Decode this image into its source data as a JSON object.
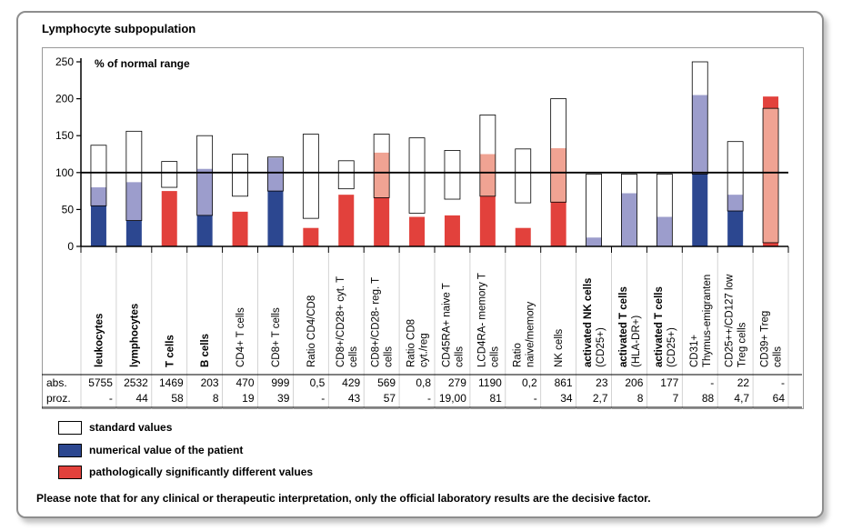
{
  "panel_title": "Lymphocyte subpopulation",
  "colors": {
    "standard": "#ffffff",
    "patient": "#2c4790",
    "patient_in_range": "#9c9dcc",
    "pathological": "#e2413c",
    "pathological_in_range": "#f0a393"
  },
  "chart_data": {
    "type": "bar",
    "title": "",
    "ylabel": "% of normal range",
    "ylim": [
      0,
      250
    ],
    "yticks": [
      0,
      50,
      100,
      150,
      200,
      250
    ],
    "reference_line": 100,
    "categories": [
      {
        "label": "leukocytes",
        "bold": true
      },
      {
        "label": "lymphocytes",
        "bold": true
      },
      {
        "label": "T cells",
        "bold": true
      },
      {
        "label": "B cells",
        "bold": true
      },
      {
        "label": "CD4+ T cells",
        "bold": false
      },
      {
        "label": "CD8+ T cells",
        "bold": false
      },
      {
        "label": "Ratio CD4/CD8",
        "bold": false
      },
      {
        "label": "CD8+/CD28+ cyt. T cells",
        "bold": false
      },
      {
        "label": "CD8+/CD28- reg. T cells",
        "bold": false
      },
      {
        "label": "Ratio CD8 cyt./reg",
        "bold": false
      },
      {
        "label": "CD45RA+ naive T cells",
        "bold": false
      },
      {
        "label": "LCD4RA- memory T cells",
        "bold": false
      },
      {
        "label": "Ratio naive/memory",
        "bold": false
      },
      {
        "label": "NK cells",
        "bold": false
      },
      {
        "label": "activated NK cells (CD25+)",
        "bold": true
      },
      {
        "label": "activated T cells (HLA-DR+)",
        "bold": true
      },
      {
        "label": "activated T cells (CD25+)",
        "bold": true
      },
      {
        "label": "CD31+ Thymus-emigranten",
        "bold": false
      },
      {
        "label": "CD25++/CD127 low Treg cells",
        "bold": false
      },
      {
        "label": "CD39+ Treg cells",
        "bold": false
      }
    ],
    "series": [
      {
        "name": "standard values",
        "ranges": [
          [
            55,
            137
          ],
          [
            35,
            156
          ],
          [
            80,
            115
          ],
          [
            42,
            150
          ],
          [
            68,
            125
          ],
          [
            75,
            121
          ],
          [
            38,
            152
          ],
          [
            78,
            116
          ],
          [
            66,
            152
          ],
          [
            45,
            147
          ],
          [
            64,
            130
          ],
          [
            68,
            178
          ],
          [
            59,
            132
          ],
          [
            60,
            200
          ],
          [
            0,
            98
          ],
          [
            0,
            98
          ],
          [
            0,
            98
          ],
          [
            98,
            250
          ],
          [
            48,
            142
          ],
          [
            5,
            187
          ]
        ]
      },
      {
        "name": "numerical value of the patient",
        "values": [
          80,
          87,
          75,
          105,
          47,
          120,
          25,
          70,
          127,
          40,
          42,
          125,
          25,
          133,
          12,
          72,
          40,
          205,
          70,
          203
        ],
        "status": [
          "normal",
          "normal",
          "pathological",
          "normal",
          "pathological",
          "normal",
          "pathological",
          "pathological",
          "pathological",
          "pathological",
          "pathological",
          "pathological",
          "pathological",
          "pathological",
          "normal",
          "normal",
          "normal",
          "normal",
          "normal",
          "pathological"
        ]
      }
    ]
  },
  "table": {
    "row_labels": [
      "abs.",
      "proz."
    ],
    "abs": [
      "5755",
      "2532",
      "1469",
      "203",
      "470",
      "999",
      "0,5",
      "429",
      "569",
      "0,8",
      "279",
      "1190",
      "0,2",
      "861",
      "23",
      "206",
      "177",
      "-",
      "22",
      "-"
    ],
    "proz": [
      "-",
      "44",
      "58",
      "8",
      "19",
      "39",
      "-",
      "43",
      "57",
      "-",
      "19,00",
      "81",
      "-",
      "34",
      "2,7",
      "8",
      "7",
      "88",
      "4,7",
      "64"
    ]
  },
  "legend": [
    {
      "label": "standard values",
      "color": "#ffffff"
    },
    {
      "label": "numerical value of the patient",
      "color": "#2c4790"
    },
    {
      "label": "pathologically significantly different values",
      "color": "#e2413c"
    }
  ],
  "note": "Please note that for any clinical or therapeutic interpretation, only the official laboratory results are the decisive factor."
}
